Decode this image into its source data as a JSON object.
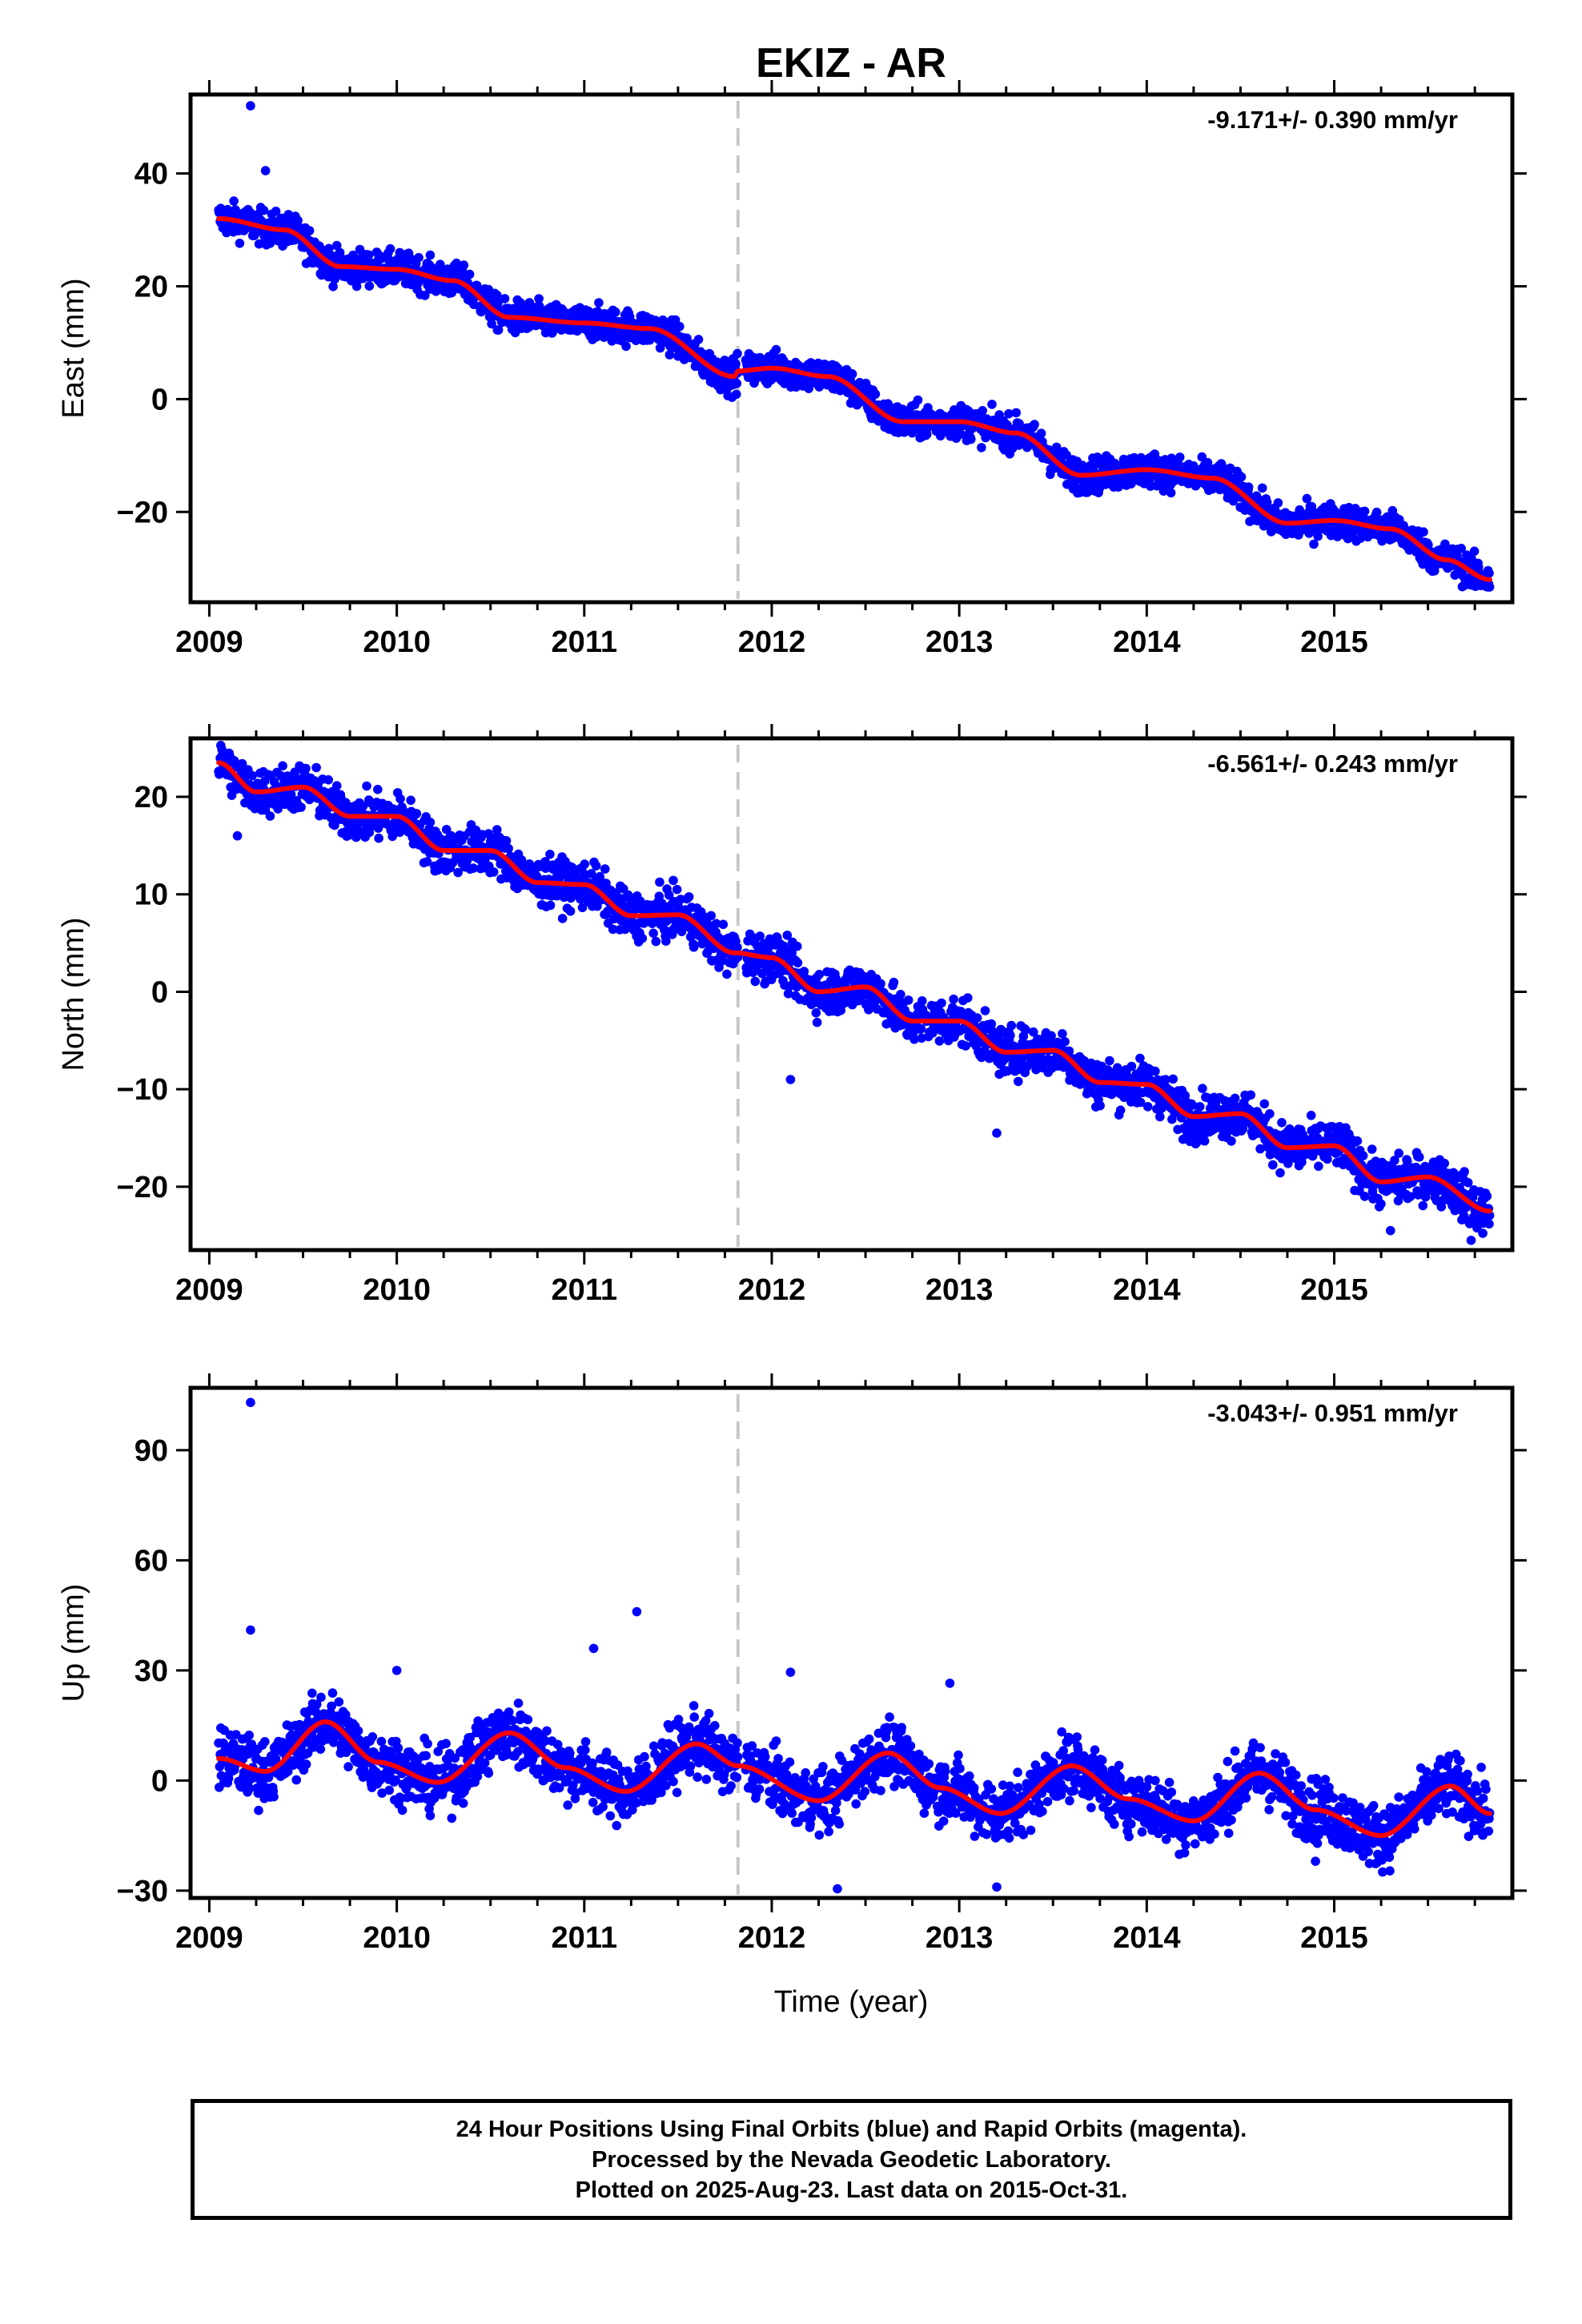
{
  "title": "EKIZ - AR",
  "xlabel": "Time (year)",
  "colors": {
    "points": "#0000ff",
    "fit": "#ff0000",
    "marker_line": "#c8c8c8",
    "axes": "#000000"
  },
  "footer": {
    "line1": "24 Hour Positions Using Final Orbits (blue) and Rapid Orbits (magenta).",
    "line2": "Processed by the Nevada Geodetic Laboratory.",
    "line3": "Plotted on 2025-Aug-23. Last data on 2015-Oct-31."
  },
  "chart_data": [
    {
      "type": "scatter",
      "component": "east",
      "ylabel": "East (mm)",
      "rate_label": "-9.171+/- 0.390 mm/yr",
      "xlim": [
        2008.9,
        2015.95
      ],
      "ylim": [
        -36,
        54
      ],
      "xticks": [
        2009,
        2010,
        2011,
        2012,
        2013,
        2014,
        2015
      ],
      "yticks": [
        -20,
        0,
        20,
        40
      ],
      "grid": false,
      "marker_x": 2011.82,
      "series": [
        {
          "kind": "points",
          "x_start": 2009.05,
          "x_end": 2015.83,
          "step": 0.0028,
          "scatter_mm": 1.5,
          "outliers": [
            {
              "x": 2009.22,
              "y": 52
            },
            {
              "x": 2009.3,
              "y": 40.5
            }
          ]
        },
        {
          "kind": "fit",
          "x": [
            2009.05,
            2009.4,
            2009.7,
            2010.0,
            2010.3,
            2010.6,
            2011.0,
            2011.35,
            2011.8,
            2011.82,
            2012.0,
            2012.3,
            2012.7,
            2013.0,
            2013.3,
            2013.65,
            2014.0,
            2014.35,
            2014.75,
            2015.0,
            2015.3,
            2015.6,
            2015.83
          ],
          "y": [
            32,
            30,
            23.5,
            23,
            21,
            14.5,
            13.5,
            12.5,
            4,
            5,
            5.5,
            4,
            -4,
            -4,
            -6,
            -13.5,
            -12.5,
            -14,
            -22,
            -21.5,
            -23,
            -28.5,
            -32
          ]
        }
      ]
    },
    {
      "type": "scatter",
      "component": "north",
      "ylabel": "North (mm)",
      "rate_label": "-6.561+/- 0.243 mm/yr",
      "xlim": [
        2008.9,
        2015.95
      ],
      "ylim": [
        -26.5,
        26
      ],
      "xticks": [
        2009,
        2010,
        2011,
        2012,
        2013,
        2014,
        2015
      ],
      "yticks": [
        -20,
        -10,
        0,
        10,
        20
      ],
      "grid": false,
      "marker_x": 2011.82,
      "series": [
        {
          "kind": "points",
          "x_start": 2009.05,
          "x_end": 2015.83,
          "step": 0.0028,
          "scatter_mm": 1.2,
          "outliers": [
            {
              "x": 2009.15,
              "y": 16
            },
            {
              "x": 2012.1,
              "y": -9
            },
            {
              "x": 2013.2,
              "y": -14.5
            },
            {
              "x": 2015.3,
              "y": -24.5
            },
            {
              "x": 2015.73,
              "y": -25.5
            }
          ]
        },
        {
          "kind": "fit",
          "x": [
            2009.05,
            2009.25,
            2009.5,
            2009.75,
            2010.0,
            2010.25,
            2010.5,
            2010.75,
            2011.0,
            2011.25,
            2011.5,
            2011.8,
            2012.0,
            2012.25,
            2012.5,
            2012.75,
            2013.0,
            2013.25,
            2013.5,
            2013.75,
            2014.0,
            2014.25,
            2014.5,
            2014.75,
            2015.0,
            2015.25,
            2015.5,
            2015.83
          ],
          "y": [
            23.5,
            20.5,
            21,
            18,
            18,
            14.5,
            14.5,
            11.2,
            11,
            7.8,
            7.9,
            4,
            3.5,
            0,
            0.5,
            -3,
            -3,
            -6.2,
            -6,
            -9.3,
            -9.5,
            -12.8,
            -12.5,
            -16,
            -15.8,
            -19.5,
            -19,
            -22.5
          ]
        }
      ]
    },
    {
      "type": "scatter",
      "component": "up",
      "ylabel": "Up (mm)",
      "rate_label": "-3.043+/- 0.951 mm/yr",
      "xlabel": "Time (year)",
      "xlim": [
        2008.9,
        2015.95
      ],
      "ylim": [
        -32,
        107
      ],
      "xticks": [
        2009,
        2010,
        2011,
        2012,
        2013,
        2014,
        2015
      ],
      "yticks": [
        -30,
        0,
        30,
        60,
        90
      ],
      "grid": false,
      "marker_x": 2011.82,
      "series": [
        {
          "kind": "points",
          "x_start": 2009.05,
          "x_end": 2015.83,
          "step": 0.0028,
          "scatter_mm": 4.2,
          "outliers": [
            {
              "x": 2009.22,
              "y": 103
            },
            {
              "x": 2009.22,
              "y": 41
            },
            {
              "x": 2010.0,
              "y": 30
            },
            {
              "x": 2011.05,
              "y": 36
            },
            {
              "x": 2011.28,
              "y": 46
            },
            {
              "x": 2012.1,
              "y": 29.5
            },
            {
              "x": 2012.35,
              "y": -29.5
            },
            {
              "x": 2012.95,
              "y": 26.5
            },
            {
              "x": 2013.2,
              "y": -29
            },
            {
              "x": 2014.9,
              "y": -22
            }
          ]
        },
        {
          "kind": "fit",
          "x": [
            2009.05,
            2009.3,
            2009.62,
            2009.9,
            2010.22,
            2010.6,
            2010.9,
            2011.22,
            2011.6,
            2011.82,
            2012.25,
            2012.62,
            2012.9,
            2013.22,
            2013.6,
            2013.9,
            2014.25,
            2014.6,
            2014.9,
            2015.25,
            2015.62,
            2015.83
          ],
          "y": [
            6,
            2.5,
            16,
            5,
            -0.5,
            13,
            3.5,
            -3,
            10,
            4,
            -5.5,
            7.5,
            -2,
            -9,
            4,
            -5,
            -11,
            2,
            -8,
            -15,
            -1.5,
            -9
          ]
        }
      ]
    }
  ]
}
